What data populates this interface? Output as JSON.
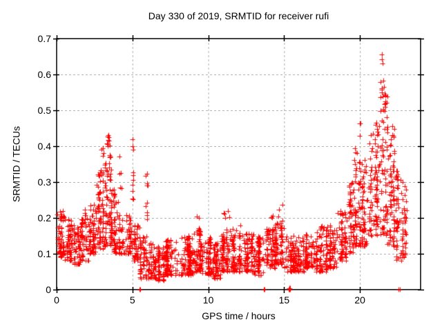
{
  "chart_data": {
    "type": "scatter",
    "title": "Day 330 of 2019, SRMTID for receiver rufi",
    "xlabel": "GPS time / hours",
    "ylabel": "SRMTID / TECUs",
    "xlim": [
      0,
      24
    ],
    "ylim": [
      0,
      0.7
    ],
    "grid": true,
    "legend": "none",
    "x_ticks": [
      {
        "v": 0,
        "label": "0"
      },
      {
        "v": 5,
        "label": "5"
      },
      {
        "v": 10,
        "label": "10"
      },
      {
        "v": 15,
        "label": "15"
      },
      {
        "v": 20,
        "label": "20"
      }
    ],
    "y_ticks": [
      {
        "v": 0.0,
        "label": "0"
      },
      {
        "v": 0.1,
        "label": "0.1"
      },
      {
        "v": 0.2,
        "label": "0.2"
      },
      {
        "v": 0.3,
        "label": "0.3"
      },
      {
        "v": 0.4,
        "label": "0.4"
      },
      {
        "v": 0.5,
        "label": "0.5"
      },
      {
        "v": 0.6,
        "label": "0.6"
      },
      {
        "v": 0.7,
        "label": "0.7"
      }
    ],
    "marker": {
      "shape": "plus",
      "color": "#ff0000",
      "size": 7
    },
    "notes": "Dense scatter (~2600 points). segments encode the band envelope as [t_start_h, t_end_h, n_points, v_min_TECU, v_max_TECU, skew_exponent]; peak_points and zero_points are individually visible extreme markers read off the plot.",
    "segments": [
      [
        0.0,
        0.5,
        62,
        0.09,
        0.22,
        1.3
      ],
      [
        0.5,
        1.0,
        55,
        0.08,
        0.2,
        1.4
      ],
      [
        1.0,
        1.6,
        52,
        0.07,
        0.18,
        1.3
      ],
      [
        1.6,
        2.1,
        50,
        0.08,
        0.2,
        1.2
      ],
      [
        1.85,
        2.0,
        6,
        0.17,
        0.23,
        1.0
      ],
      [
        2.1,
        2.6,
        60,
        0.1,
        0.24,
        1.3
      ],
      [
        2.6,
        3.1,
        65,
        0.11,
        0.33,
        1.4
      ],
      [
        2.8,
        3.1,
        8,
        0.3,
        0.4,
        1.0
      ],
      [
        3.1,
        3.7,
        80,
        0.12,
        0.38,
        1.5
      ],
      [
        3.25,
        3.6,
        10,
        0.32,
        0.43,
        1.0
      ],
      [
        3.7,
        4.3,
        60,
        0.1,
        0.28,
        1.5
      ],
      [
        4.0,
        4.3,
        5,
        0.24,
        0.33,
        1.0
      ],
      [
        4.3,
        4.95,
        55,
        0.1,
        0.21,
        1.4
      ],
      [
        4.98,
        5.06,
        8,
        0.23,
        0.42,
        1.0
      ],
      [
        5.0,
        5.5,
        48,
        0.08,
        0.18,
        1.5
      ],
      [
        5.5,
        6.0,
        55,
        0.03,
        0.15,
        1.5
      ],
      [
        5.88,
        6.04,
        10,
        0.14,
        0.33,
        1.0
      ],
      [
        6.0,
        6.6,
        60,
        0.03,
        0.13,
        1.4
      ],
      [
        6.6,
        7.2,
        60,
        0.025,
        0.12,
        1.4
      ],
      [
        7.2,
        8.0,
        85,
        0.04,
        0.14,
        1.4
      ],
      [
        8.0,
        9.0,
        115,
        0.04,
        0.15,
        1.4
      ],
      [
        9.0,
        9.6,
        70,
        0.05,
        0.17,
        1.4
      ],
      [
        9.2,
        9.5,
        5,
        0.15,
        0.21,
        1.0
      ],
      [
        9.6,
        10.2,
        65,
        0.04,
        0.15,
        1.5
      ],
      [
        10.2,
        10.8,
        65,
        0.03,
        0.13,
        1.5
      ],
      [
        10.8,
        11.5,
        78,
        0.05,
        0.17,
        1.4
      ],
      [
        11.0,
        11.4,
        5,
        0.16,
        0.22,
        1.0
      ],
      [
        11.5,
        12.2,
        78,
        0.05,
        0.18,
        1.4
      ],
      [
        12.2,
        13.0,
        85,
        0.05,
        0.16,
        1.4
      ],
      [
        13.0,
        13.7,
        72,
        0.04,
        0.15,
        1.4
      ],
      [
        13.7,
        14.4,
        72,
        0.06,
        0.17,
        1.3
      ],
      [
        14.0,
        14.3,
        5,
        0.16,
        0.22,
        1.0
      ],
      [
        14.4,
        15.0,
        66,
        0.07,
        0.19,
        1.3
      ],
      [
        14.6,
        14.9,
        5,
        0.17,
        0.25,
        1.0
      ],
      [
        15.0,
        15.7,
        66,
        0.05,
        0.15,
        1.4
      ],
      [
        15.7,
        16.4,
        66,
        0.05,
        0.15,
        1.4
      ],
      [
        16.4,
        17.1,
        70,
        0.06,
        0.16,
        1.4
      ],
      [
        17.1,
        17.8,
        70,
        0.05,
        0.17,
        1.4
      ],
      [
        17.4,
        17.7,
        5,
        0.16,
        0.21,
        1.0
      ],
      [
        17.8,
        18.5,
        70,
        0.06,
        0.18,
        1.3
      ],
      [
        18.5,
        19.1,
        60,
        0.08,
        0.22,
        1.3
      ],
      [
        19.1,
        19.6,
        52,
        0.1,
        0.3,
        1.2
      ],
      [
        19.6,
        20.1,
        52,
        0.12,
        0.4,
        1.3
      ],
      [
        19.95,
        20.06,
        8,
        0.28,
        0.47,
        1.0
      ],
      [
        20.1,
        20.6,
        55,
        0.12,
        0.38,
        1.4
      ],
      [
        20.6,
        20.85,
        30,
        0.15,
        0.43,
        1.2
      ],
      [
        20.85,
        21.3,
        58,
        0.15,
        0.48,
        1.3
      ],
      [
        21.3,
        21.8,
        72,
        0.15,
        0.55,
        1.2
      ],
      [
        21.35,
        21.65,
        8,
        0.48,
        0.6,
        1.0
      ],
      [
        21.8,
        22.35,
        66,
        0.12,
        0.46,
        1.4
      ],
      [
        22.35,
        22.8,
        50,
        0.08,
        0.34,
        1.4
      ],
      [
        22.8,
        23.1,
        38,
        0.09,
        0.3,
        1.3
      ]
    ],
    "peak_points": [
      [
        21.45,
        0.655
      ],
      [
        21.43,
        0.642
      ],
      [
        21.5,
        0.63
      ],
      [
        21.38,
        0.578
      ],
      [
        21.52,
        0.582
      ],
      [
        21.57,
        0.565
      ],
      [
        3.42,
        0.43
      ],
      [
        3.46,
        0.416
      ],
      [
        3.35,
        0.405
      ],
      [
        5.02,
        0.42
      ],
      [
        5.0,
        0.4
      ],
      [
        20.0,
        0.463
      ],
      [
        20.7,
        0.43
      ],
      [
        4.15,
        0.372
      ]
    ],
    "zero_points": [
      [
        5.45,
        0
      ],
      [
        5.5,
        0
      ],
      [
        13.65,
        0
      ],
      [
        13.73,
        0
      ],
      [
        15.31,
        0
      ],
      [
        15.34,
        0
      ],
      [
        15.37,
        0
      ],
      [
        15.4,
        0
      ],
      [
        15.33,
        0.004
      ],
      [
        15.36,
        0.004
      ],
      [
        15.39,
        0.004
      ],
      [
        22.55,
        0
      ],
      [
        22.63,
        0
      ]
    ]
  },
  "colors": {
    "marker": "#ff0000",
    "grid": "#b4b4b4",
    "axis": "#000000",
    "background": "#ffffff",
    "text": "#000000"
  }
}
